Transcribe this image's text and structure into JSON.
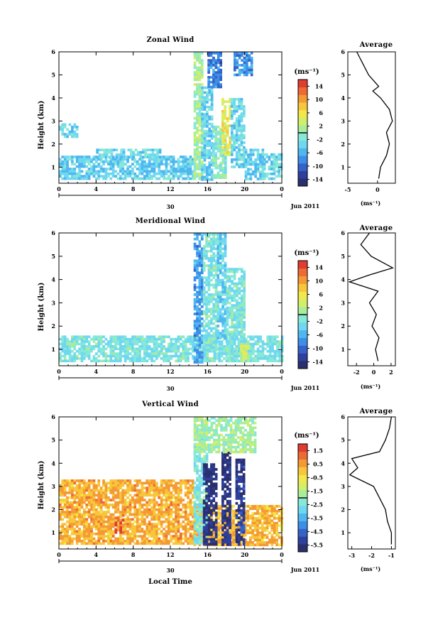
{
  "panels": [
    {
      "title": "Zonal Wind",
      "ylabel": "Height (km)",
      "yticks": [
        "1",
        "2",
        "3",
        "4",
        "5",
        "6"
      ],
      "xticks": [
        "0",
        "4",
        "8",
        "12",
        "16",
        "20",
        "0"
      ],
      "day_label": "30",
      "month_label": "Jun 2011",
      "colorbar_unit": "(ms⁻¹)",
      "colorbar_ticks": [
        "14",
        "10",
        "6",
        "2",
        "-2",
        "-6",
        "-10",
        "-14"
      ],
      "avg_title": "Average",
      "avg_xticks": [
        "-5",
        "0"
      ],
      "avg_xlabel": "(ms⁻¹)"
    },
    {
      "title": "Meridional Wind",
      "ylabel": "Height (km)",
      "yticks": [
        "1",
        "2",
        "3",
        "4",
        "5",
        "6"
      ],
      "xticks": [
        "0",
        "4",
        "8",
        "12",
        "16",
        "20",
        "0"
      ],
      "day_label": "30",
      "month_label": "Jun 2011",
      "colorbar_unit": "(ms⁻¹)",
      "colorbar_ticks": [
        "14",
        "10",
        "6",
        "2",
        "-2",
        "-6",
        "-10",
        "-14"
      ],
      "avg_title": "Average",
      "avg_xticks": [
        "-2",
        "0",
        "2"
      ],
      "avg_xlabel": "(ms⁻¹)"
    },
    {
      "title": "Vertical Wind",
      "ylabel": "Height (km)",
      "yticks": [
        "1",
        "2",
        "3",
        "4",
        "5",
        "6"
      ],
      "xticks": [
        "0",
        "4",
        "8",
        "12",
        "16",
        "20",
        "0"
      ],
      "day_label": "30",
      "month_label": "Jun 2011",
      "xlabel": "Local Time",
      "colorbar_unit": "(ms⁻¹)",
      "colorbar_ticks": [
        "1.5",
        "0.5",
        "-0.5",
        "-1.5",
        "-2.5",
        "-3.5",
        "-4.5",
        "-5.5"
      ],
      "avg_title": "Average",
      "avg_xticks": [
        "-3",
        "-2",
        "-1"
      ],
      "avg_xlabel": "(ms⁻¹)"
    }
  ],
  "chart_data": [
    {
      "type": "heatmap",
      "title": "Zonal Wind",
      "ylabel": "Height (km)",
      "xlim": [
        0,
        24
      ],
      "ylim": [
        0.3,
        6
      ],
      "clim": [
        -16,
        16
      ],
      "regions": [
        {
          "x": [
            0,
            14.5
          ],
          "y": [
            0.5,
            1.5
          ],
          "value": -4
        },
        {
          "x": [
            0,
            2
          ],
          "y": [
            2.3,
            2.9
          ],
          "value": -3
        },
        {
          "x": [
            4,
            11
          ],
          "y": [
            1.4,
            1.8
          ],
          "value": -3
        },
        {
          "x": [
            14.5,
            15.5
          ],
          "y": [
            0.5,
            6
          ],
          "value": 1
        },
        {
          "x": [
            15.3,
            16.5
          ],
          "y": [
            0.5,
            4.5
          ],
          "value": -4
        },
        {
          "x": [
            16.5,
            18
          ],
          "y": [
            0.5,
            2.8
          ],
          "value": -1
        },
        {
          "x": [
            17.5,
            18.5
          ],
          "y": [
            1.5,
            4
          ],
          "value": 5
        },
        {
          "x": [
            18.5,
            20
          ],
          "y": [
            1,
            4
          ],
          "value": -3
        },
        {
          "x": [
            20,
            22
          ],
          "y": [
            0.5,
            1.8
          ],
          "value": -4
        },
        {
          "x": [
            16,
            17.5
          ],
          "y": [
            4.5,
            6
          ],
          "value": -9
        },
        {
          "x": [
            18.8,
            20.8
          ],
          "y": [
            5,
            6
          ],
          "value": -8
        },
        {
          "x": [
            22,
            24
          ],
          "y": [
            0.5,
            1.6
          ],
          "value": -3
        }
      ],
      "average_profile": {
        "xlim": [
          -5,
          3
        ],
        "height": [
          0.5,
          1,
          1.5,
          2,
          2.5,
          3,
          3.5,
          4,
          4.3,
          4.5,
          5,
          5.5,
          6
        ],
        "value": [
          0.2,
          0.5,
          1.5,
          2,
          1.5,
          2.5,
          2,
          0.5,
          -0.8,
          0.2,
          -1.5,
          -2.5,
          -3.5
        ]
      }
    },
    {
      "type": "heatmap",
      "title": "Meridional Wind",
      "ylabel": "Height (km)",
      "xlim": [
        0,
        24
      ],
      "ylim": [
        0.3,
        6
      ],
      "clim": [
        -16,
        16
      ],
      "regions": [
        {
          "x": [
            0,
            24
          ],
          "y": [
            0.5,
            1.6
          ],
          "value": -2
        },
        {
          "x": [
            14.5,
            15.5
          ],
          "y": [
            0.5,
            6
          ],
          "value": -7
        },
        {
          "x": [
            15.5,
            17
          ],
          "y": [
            1,
            6
          ],
          "value": -2
        },
        {
          "x": [
            17,
            18
          ],
          "y": [
            1.5,
            6
          ],
          "value": -4
        },
        {
          "x": [
            18,
            20
          ],
          "y": [
            0.5,
            4.5
          ],
          "value": -2
        },
        {
          "x": [
            19.5,
            20.5
          ],
          "y": [
            0.5,
            1.2
          ],
          "value": 3
        }
      ],
      "average_profile": {
        "xlim": [
          -3,
          2.5
        ],
        "height": [
          0.5,
          1,
          1.5,
          2,
          2.5,
          3,
          3.5,
          3.9,
          4.2,
          4.5,
          5,
          5.5,
          6
        ],
        "value": [
          0.5,
          0.2,
          0.6,
          -0.2,
          0.3,
          -0.5,
          0.5,
          -2.8,
          -0.5,
          2.2,
          -0.3,
          -1.5,
          -0.5
        ]
      }
    },
    {
      "type": "heatmap",
      "title": "Vertical Wind",
      "ylabel": "Height (km)",
      "xlabel": "Local Time",
      "xlim": [
        0,
        24
      ],
      "ylim": [
        0.3,
        6
      ],
      "clim": [
        -6,
        2
      ],
      "regions": [
        {
          "x": [
            0,
            14.5
          ],
          "y": [
            0.5,
            3.3
          ],
          "value": 0.3
        },
        {
          "x": [
            6,
            7
          ],
          "y": [
            1,
            1.8
          ],
          "value": 1.3
        },
        {
          "x": [
            14.5,
            24
          ],
          "y": [
            0.5,
            2.2
          ],
          "value": 0.2
        },
        {
          "x": [
            14.5,
            16
          ],
          "y": [
            0.5,
            5.5
          ],
          "value": -2.5
        },
        {
          "x": [
            15.5,
            17
          ],
          "y": [
            0.5,
            4
          ],
          "value": -5.5
        },
        {
          "x": [
            17.5,
            18.5
          ],
          "y": [
            0.5,
            4.5
          ],
          "value": -5.5
        },
        {
          "x": [
            19,
            20
          ],
          "y": [
            0.5,
            4.2
          ],
          "value": -5.3
        },
        {
          "x": [
            14.5,
            21
          ],
          "y": [
            4.5,
            6
          ],
          "value": -1.8
        }
      ],
      "average_profile": {
        "xlim": [
          -3.2,
          -0.8
        ],
        "height": [
          0.5,
          1,
          1.5,
          2,
          2.5,
          3,
          3.5,
          3.8,
          4.2,
          4.5,
          5,
          5.5,
          6
        ],
        "value": [
          -1,
          -1,
          -1.2,
          -1.3,
          -1.6,
          -1.9,
          -3.1,
          -2.7,
          -3.0,
          -1.6,
          -1.3,
          -1.1,
          -1.0
        ]
      }
    }
  ]
}
